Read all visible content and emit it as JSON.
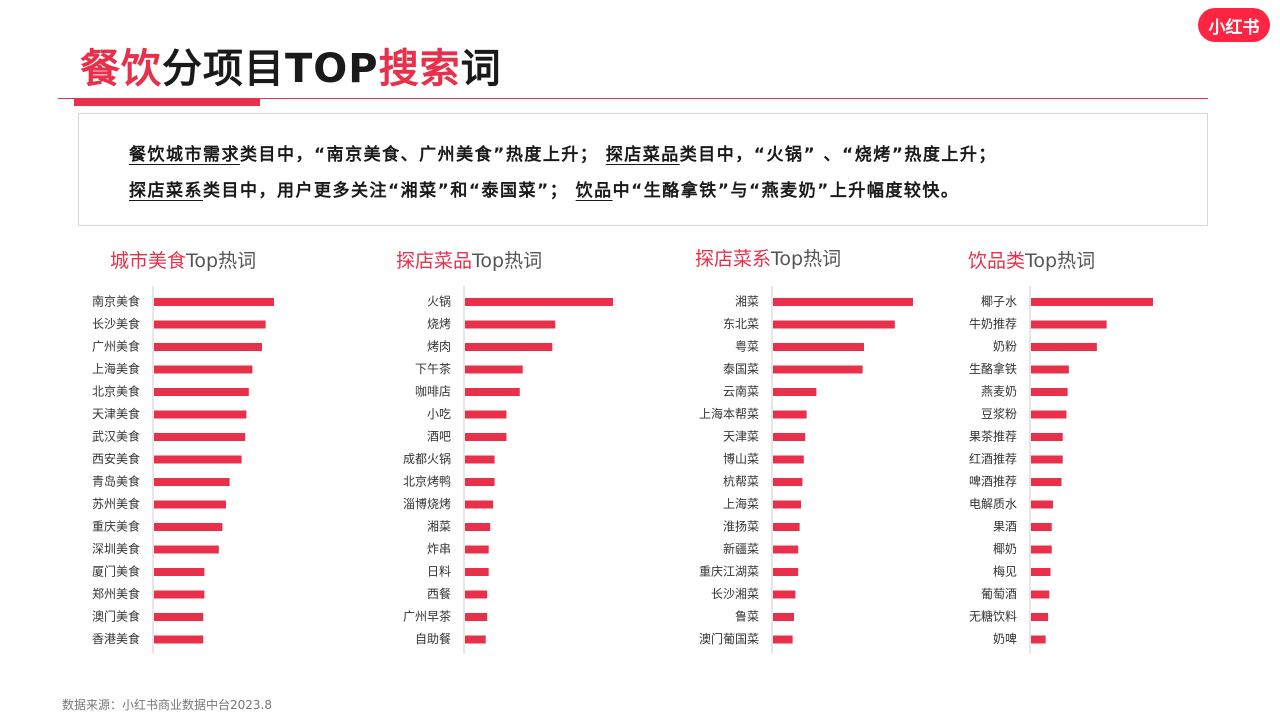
{
  "header": {
    "title_part1": "餐饮",
    "title_part2": "分项目TOP",
    "title_part3": "搜索",
    "title_part4": "词",
    "logo_text": "小红书"
  },
  "summary": {
    "line1_a": "餐饮城市需求",
    "line1_b": "类目中，“南京美食、广州美食”热度上升；",
    "line1_c": "探店菜品",
    "line1_d": "类目中，“火锅” 、“烧烤”热度上升；",
    "line2_a": "探店菜系",
    "line2_b": "类目中，用户更多关注“湘菜”和“泰国菜”；",
    "line2_c": "饮品",
    "line2_d": "中“生酪拿铁”与“燕麦奶”上升幅度较快。"
  },
  "panels": [
    {
      "title_red": "城市美食",
      "title_rest": "Top热词"
    },
    {
      "title_red": "探店菜品",
      "title_rest": "Top热词"
    },
    {
      "title_red": "探店菜系",
      "title_rest": "Top热词"
    },
    {
      "title_red": "饮品类",
      "title_rest": "Top热词"
    }
  ],
  "footer": {
    "source": "数据来源：小红书商业数据中台2023.8"
  },
  "colors": {
    "accent": "#e8304a",
    "bar": "#e8304a",
    "axis": "#cccccc"
  },
  "chart_data": [
    {
      "type": "bar",
      "orientation": "horizontal",
      "categories": [
        "南京美食",
        "长沙美食",
        "广州美食",
        "上海美食",
        "北京美食",
        "天津美食",
        "武汉美食",
        "西安美食",
        "青岛美食",
        "苏州美食",
        "重庆美食",
        "深圳美食",
        "厦门美食",
        "郑州美食",
        "澳门美食",
        "香港美食"
      ],
      "values": [
        100,
        93,
        90,
        82,
        79,
        77,
        76,
        73,
        63,
        60,
        57,
        54,
        42,
        42,
        41,
        41
      ]
    },
    {
      "type": "bar",
      "orientation": "horizontal",
      "categories": [
        "火锅",
        "烧烤",
        "烤肉",
        "下午茶",
        "咖啡店",
        "小吃",
        "酒吧",
        "成都火锅",
        "北京烤鸭",
        "淄博烧烤",
        "湘菜",
        "炸串",
        "日料",
        "西餐",
        "广州早茶",
        "自助餐"
      ],
      "values": [
        100,
        61,
        59,
        39,
        37,
        28,
        28,
        20,
        20,
        19,
        17,
        16,
        16,
        15,
        15,
        14
      ]
    },
    {
      "type": "bar",
      "orientation": "horizontal",
      "categories": [
        "湘菜",
        "东北菜",
        "粤菜",
        "泰国菜",
        "云南菜",
        "上海本帮菜",
        "天津菜",
        "博山菜",
        "杭帮菜",
        "上海菜",
        "淮扬菜",
        "新疆菜",
        "重庆江湖菜",
        "长沙湘菜",
        "鲁菜",
        "澳门葡国菜"
      ],
      "values": [
        100,
        87,
        65,
        64,
        31,
        24,
        23,
        22,
        21,
        20,
        19,
        18,
        18,
        16,
        15,
        14
      ]
    },
    {
      "type": "bar",
      "orientation": "horizontal",
      "categories": [
        "椰子水",
        "牛奶推荐",
        "奶粉",
        "生酪拿铁",
        "燕麦奶",
        "豆浆粉",
        "果茶推荐",
        "红酒推荐",
        "啤酒推荐",
        "电解质水",
        "果酒",
        "椰奶",
        "梅见",
        "葡萄酒",
        "无糖饮料",
        "奶啤"
      ],
      "values": [
        100,
        62,
        54,
        31,
        30,
        29,
        26,
        26,
        25,
        18,
        17,
        17,
        16,
        15,
        14,
        12
      ]
    }
  ]
}
